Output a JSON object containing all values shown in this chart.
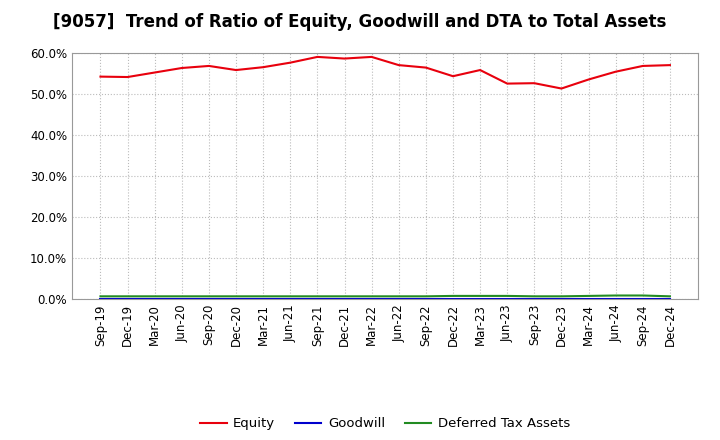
{
  "title": "[9057]  Trend of Ratio of Equity, Goodwill and DTA to Total Assets",
  "x_labels": [
    "Sep-19",
    "Dec-19",
    "Mar-20",
    "Jun-20",
    "Sep-20",
    "Dec-20",
    "Mar-21",
    "Jun-21",
    "Sep-21",
    "Dec-21",
    "Mar-22",
    "Jun-22",
    "Sep-22",
    "Dec-22",
    "Mar-23",
    "Jun-23",
    "Sep-23",
    "Dec-23",
    "Mar-24",
    "Jun-24",
    "Sep-24",
    "Dec-24"
  ],
  "equity": [
    54.2,
    54.1,
    55.2,
    56.3,
    56.8,
    55.8,
    56.5,
    57.6,
    59.0,
    58.6,
    59.0,
    57.0,
    56.4,
    54.3,
    55.8,
    52.5,
    52.6,
    51.3,
    53.5,
    55.4,
    56.8,
    57.0
  ],
  "goodwill": [
    0.0,
    0.0,
    0.0,
    0.0,
    0.0,
    0.0,
    0.0,
    0.0,
    0.0,
    0.0,
    0.0,
    0.0,
    0.0,
    0.0,
    0.0,
    0.0,
    0.0,
    0.0,
    0.0,
    0.0,
    0.0,
    0.0
  ],
  "dta": [
    0.7,
    0.7,
    0.7,
    0.7,
    0.7,
    0.7,
    0.7,
    0.7,
    0.7,
    0.7,
    0.7,
    0.7,
    0.7,
    0.8,
    0.8,
    0.8,
    0.7,
    0.7,
    0.8,
    0.9,
    0.9,
    0.7
  ],
  "equity_color": "#e8000d",
  "goodwill_color": "#0000cd",
  "dta_color": "#228B22",
  "background_color": "#ffffff",
  "plot_bg_color": "#ffffff",
  "ylim": [
    0,
    60
  ],
  "yticks": [
    0,
    10,
    20,
    30,
    40,
    50,
    60
  ],
  "legend_labels": [
    "Equity",
    "Goodwill",
    "Deferred Tax Assets"
  ],
  "title_fontsize": 12,
  "axis_fontsize": 8.5
}
